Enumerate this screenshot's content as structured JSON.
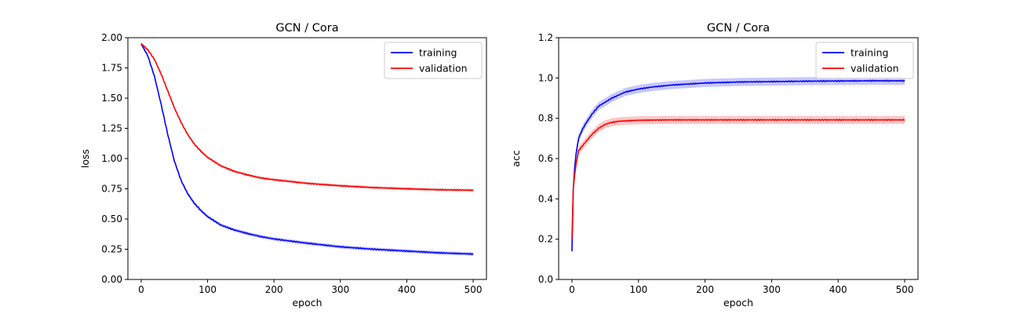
{
  "chart_data": [
    {
      "type": "line",
      "title": "GCN / Cora",
      "xlabel": "epoch",
      "ylabel": "loss",
      "xlim": [
        -20,
        520
      ],
      "ylim": [
        0,
        2.0
      ],
      "xticks": [
        0,
        100,
        200,
        300,
        400,
        500
      ],
      "xtick_labels": [
        "0",
        "100",
        "200",
        "300",
        "400",
        "500"
      ],
      "yticks": [
        0,
        0.25,
        0.5,
        0.75,
        1.0,
        1.25,
        1.5,
        1.75,
        2.0
      ],
      "ytick_labels": [
        "0.00",
        "0.25",
        "0.50",
        "0.75",
        "1.00",
        "1.25",
        "1.50",
        "1.75",
        "2.00"
      ],
      "grid": false,
      "legend": "top-right",
      "series": [
        {
          "name": "training",
          "color": "#0000ff",
          "x": [
            0,
            10,
            20,
            30,
            40,
            50,
            60,
            70,
            80,
            90,
            100,
            120,
            140,
            160,
            180,
            200,
            250,
            300,
            350,
            400,
            450,
            500
          ],
          "values": [
            1.95,
            1.85,
            1.68,
            1.45,
            1.2,
            0.98,
            0.82,
            0.71,
            0.63,
            0.57,
            0.52,
            0.45,
            0.41,
            0.38,
            0.355,
            0.335,
            0.3,
            0.27,
            0.25,
            0.235,
            0.22,
            0.21
          ],
          "band": 0.015
        },
        {
          "name": "validation",
          "color": "#ff0000",
          "x": [
            0,
            10,
            20,
            30,
            40,
            50,
            60,
            70,
            80,
            90,
            100,
            120,
            140,
            160,
            180,
            200,
            250,
            300,
            350,
            400,
            450,
            500
          ],
          "values": [
            1.95,
            1.9,
            1.82,
            1.7,
            1.56,
            1.42,
            1.3,
            1.2,
            1.12,
            1.06,
            1.01,
            0.94,
            0.895,
            0.865,
            0.84,
            0.825,
            0.795,
            0.775,
            0.76,
            0.75,
            0.742,
            0.738
          ],
          "band": 0.012
        }
      ]
    },
    {
      "type": "line",
      "title": "GCN / Cora",
      "xlabel": "epoch",
      "ylabel": "acc",
      "xlim": [
        -20,
        520
      ],
      "ylim": [
        0,
        1.2
      ],
      "xticks": [
        0,
        100,
        200,
        300,
        400,
        500
      ],
      "xtick_labels": [
        "0",
        "100",
        "200",
        "300",
        "400",
        "500"
      ],
      "yticks": [
        0,
        0.2,
        0.4,
        0.6,
        0.8,
        1.0,
        1.2
      ],
      "ytick_labels": [
        "0.0",
        "0.2",
        "0.4",
        "0.6",
        "0.8",
        "1.0",
        "1.2"
      ],
      "grid": false,
      "legend": "top-right",
      "series": [
        {
          "name": "training",
          "color": "#0000ff",
          "x": [
            0,
            2,
            5,
            10,
            15,
            20,
            30,
            40,
            50,
            60,
            70,
            80,
            100,
            120,
            150,
            200,
            250,
            300,
            350,
            400,
            450,
            500
          ],
          "values": [
            0.14,
            0.45,
            0.6,
            0.7,
            0.74,
            0.77,
            0.82,
            0.86,
            0.88,
            0.9,
            0.915,
            0.93,
            0.945,
            0.955,
            0.965,
            0.975,
            0.98,
            0.982,
            0.984,
            0.985,
            0.986,
            0.986
          ],
          "band": 0.02
        },
        {
          "name": "validation",
          "color": "#ff0000",
          "x": [
            0,
            2,
            5,
            10,
            15,
            20,
            30,
            40,
            50,
            60,
            70,
            80,
            100,
            120,
            150,
            200,
            250,
            300,
            350,
            400,
            450,
            500
          ],
          "values": [
            0.2,
            0.45,
            0.55,
            0.64,
            0.66,
            0.68,
            0.72,
            0.75,
            0.77,
            0.78,
            0.785,
            0.787,
            0.79,
            0.791,
            0.792,
            0.792,
            0.792,
            0.792,
            0.792,
            0.792,
            0.792,
            0.792
          ],
          "band": 0.02
        }
      ]
    }
  ]
}
